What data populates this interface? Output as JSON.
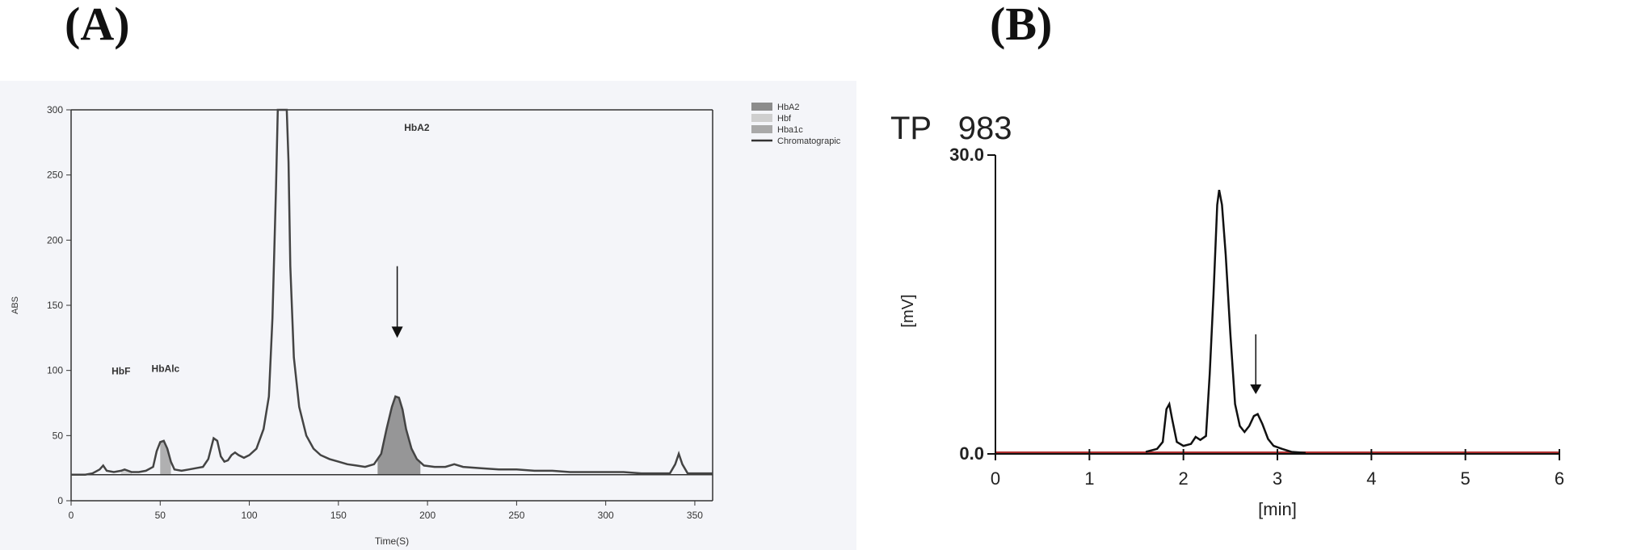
{
  "panels": {
    "a_label": "(A)",
    "b_label": "(B)"
  },
  "chart_data": [
    {
      "type": "line",
      "panel": "(A)",
      "xlabel": "Time(S)",
      "ylabel": "ABS",
      "xlim": [
        0,
        360
      ],
      "ylim": [
        0,
        300
      ],
      "xticks": [
        0,
        50,
        100,
        150,
        200,
        250,
        300,
        350
      ],
      "yticks": [
        0,
        50,
        100,
        150,
        200,
        250,
        300
      ],
      "legend": {
        "placement": "top-right",
        "entries": [
          {
            "name": "HbA2",
            "color": "#8c8c8c"
          },
          {
            "name": "Hbf",
            "color": "#cfcfcf"
          },
          {
            "name": "Hba1c",
            "color": "#a9a9a9"
          },
          {
            "name": "Chromatograpic",
            "color": "#333333"
          }
        ]
      },
      "annotations": [
        {
          "text": "HbF",
          "x": 28,
          "y": 97
        },
        {
          "text": "HbAlc",
          "x": 53,
          "y": 99
        },
        {
          "text": "HbA2",
          "x": 194,
          "y": 284
        }
      ],
      "arrow": {
        "x": 183,
        "y_from": 180,
        "y_to": 125
      },
      "series": [
        {
          "values": [
            [
              0,
              20
            ],
            [
              8,
              20
            ],
            [
              12,
              21
            ],
            [
              16,
              24
            ],
            [
              18,
              27
            ],
            [
              20,
              23
            ],
            [
              24,
              22
            ],
            [
              28,
              23
            ],
            [
              30,
              24
            ],
            [
              34,
              22
            ],
            [
              38,
              22
            ],
            [
              42,
              23
            ],
            [
              46,
              26
            ],
            [
              48,
              38
            ],
            [
              50,
              45
            ],
            [
              52,
              46
            ],
            [
              54,
              40
            ],
            [
              56,
              30
            ],
            [
              58,
              24
            ],
            [
              62,
              23
            ],
            [
              66,
              24
            ],
            [
              70,
              25
            ],
            [
              74,
              26
            ],
            [
              77,
              32
            ],
            [
              80,
              48
            ],
            [
              82,
              46
            ],
            [
              84,
              34
            ],
            [
              86,
              30
            ],
            [
              88,
              31
            ],
            [
              90,
              35
            ],
            [
              92,
              37
            ],
            [
              94,
              35
            ],
            [
              97,
              33
            ],
            [
              100,
              35
            ],
            [
              104,
              40
            ],
            [
              108,
              55
            ],
            [
              111,
              80
            ],
            [
              113,
              140
            ],
            [
              115,
              240
            ],
            [
              116,
              300
            ],
            [
              121,
              300
            ],
            [
              122,
              260
            ],
            [
              123,
              180
            ],
            [
              125,
              110
            ],
            [
              128,
              72
            ],
            [
              132,
              50
            ],
            [
              136,
              40
            ],
            [
              140,
              35
            ],
            [
              145,
              32
            ],
            [
              150,
              30
            ],
            [
              155,
              28
            ],
            [
              160,
              27
            ],
            [
              165,
              26
            ],
            [
              170,
              28
            ],
            [
              174,
              36
            ],
            [
              177,
              55
            ],
            [
              180,
              72
            ],
            [
              182,
              80
            ],
            [
              184,
              79
            ],
            [
              186,
              70
            ],
            [
              188,
              55
            ],
            [
              191,
              40
            ],
            [
              194,
              32
            ],
            [
              198,
              27
            ],
            [
              204,
              26
            ],
            [
              210,
              26
            ],
            [
              215,
              28
            ],
            [
              220,
              26
            ],
            [
              230,
              25
            ],
            [
              240,
              24
            ],
            [
              250,
              24
            ],
            [
              260,
              23
            ],
            [
              270,
              23
            ],
            [
              280,
              22
            ],
            [
              290,
              22
            ],
            [
              300,
              22
            ],
            [
              310,
              22
            ],
            [
              320,
              21
            ],
            [
              330,
              21
            ],
            [
              336,
              21
            ],
            [
              339,
              28
            ],
            [
              341,
              36
            ],
            [
              343,
              28
            ],
            [
              346,
              21
            ],
            [
              360,
              21
            ]
          ]
        }
      ],
      "shaded_peaks": [
        {
          "name": "HbA2",
          "x": [
            172,
            196
          ],
          "color": "#8c8c8c"
        },
        {
          "name": "Hba1c",
          "x": [
            50,
            56
          ],
          "color": "#a9a9a9"
        },
        {
          "name": "Hbf",
          "x": [
            28,
            34
          ],
          "color": "#cfcfcf"
        }
      ]
    },
    {
      "type": "line",
      "panel": "(B)",
      "title": "TP   983",
      "xlabel": "[min]",
      "ylabel": "[mV]",
      "xlim": [
        0,
        6
      ],
      "ylim": [
        0,
        30
      ],
      "xticks": [
        0,
        1,
        2,
        3,
        4,
        5,
        6
      ],
      "yticks_labeled": [
        "0.0",
        "30.0"
      ],
      "baseline": {
        "y": 0,
        "color": "#b03030"
      },
      "arrow": {
        "x": 2.77,
        "y_from": 12,
        "y_to": 6
      },
      "series": [
        {
          "values": [
            [
              1.6,
              0.2
            ],
            [
              1.72,
              0.5
            ],
            [
              1.78,
              1.2
            ],
            [
              1.82,
              4.5
            ],
            [
              1.85,
              5.0
            ],
            [
              1.88,
              3.5
            ],
            [
              1.93,
              1.2
            ],
            [
              2.0,
              0.8
            ],
            [
              2.08,
              1.0
            ],
            [
              2.13,
              1.7
            ],
            [
              2.18,
              1.4
            ],
            [
              2.24,
              1.8
            ],
            [
              2.28,
              8.0
            ],
            [
              2.32,
              16.0
            ],
            [
              2.36,
              25.0
            ],
            [
              2.38,
              26.5
            ],
            [
              2.41,
              25.0
            ],
            [
              2.45,
              20.0
            ],
            [
              2.5,
              12.0
            ],
            [
              2.55,
              5.0
            ],
            [
              2.6,
              2.8
            ],
            [
              2.65,
              2.2
            ],
            [
              2.7,
              2.8
            ],
            [
              2.75,
              3.8
            ],
            [
              2.79,
              4.0
            ],
            [
              2.84,
              3.0
            ],
            [
              2.9,
              1.5
            ],
            [
              2.96,
              0.8
            ],
            [
              3.05,
              0.5
            ],
            [
              3.15,
              0.2
            ],
            [
              3.3,
              0.1
            ]
          ]
        }
      ]
    }
  ]
}
